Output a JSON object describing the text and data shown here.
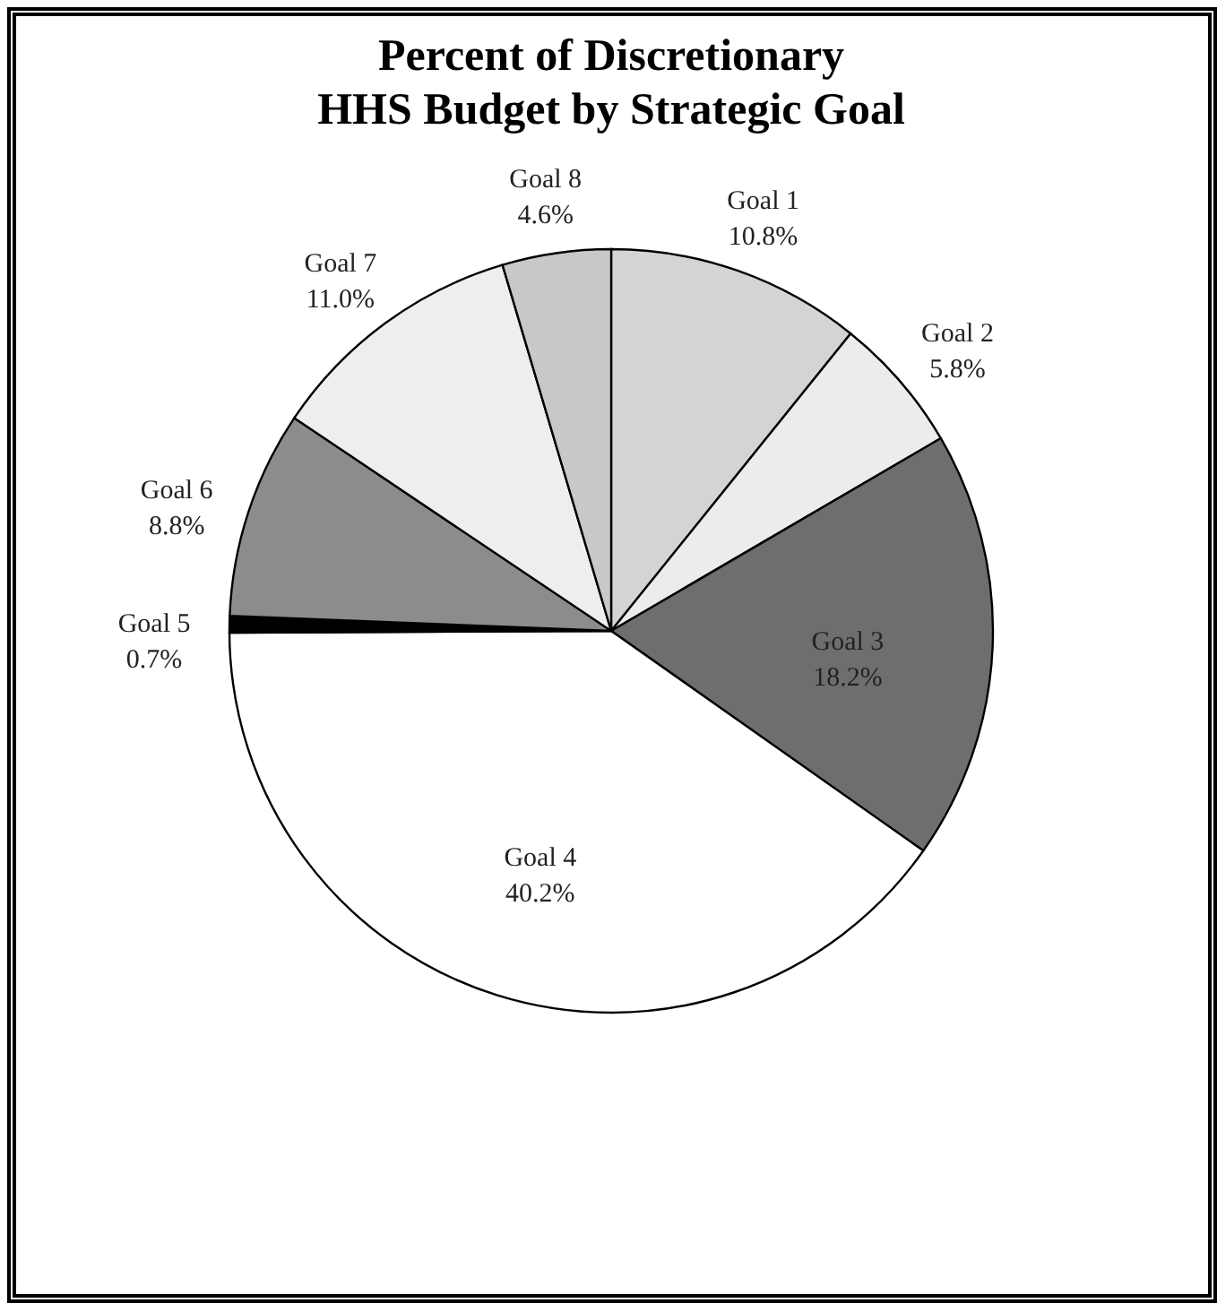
{
  "chart_data": {
    "type": "pie",
    "title": "Percent of Discretionary\nHHS Budget by Strategic Goal",
    "categories": [
      "Goal 1",
      "Goal 2",
      "Goal 3",
      "Goal 4",
      "Goal 5",
      "Goal 6",
      "Goal 7",
      "Goal 8"
    ],
    "values": [
      10.8,
      5.8,
      18.2,
      40.2,
      0.7,
      8.8,
      11.0,
      4.6
    ],
    "value_labels": [
      "10.8%",
      "5.8%",
      "18.2%",
      "40.2%",
      "0.7%",
      "8.8%",
      "11.0%",
      "4.6%"
    ],
    "colors": [
      "#d4d4d4",
      "#ececec",
      "#6e6e6e",
      "#ffffff",
      "#000000",
      "#8c8c8c",
      "#eeeeee",
      "#c8c8c8"
    ]
  }
}
